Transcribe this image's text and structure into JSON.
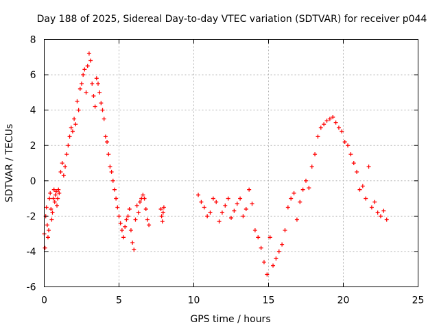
{
  "chart_data": {
    "type": "scatter",
    "title": "Day 188 of 2025, Sidereal Day-to-day VTEC variation (SDTVAR) for receiver p044",
    "xlabel": "GPS time / hours",
    "ylabel": "SDTVAR / TECUs",
    "xlim": [
      0,
      25
    ],
    "ylim": [
      -6,
      8
    ],
    "x_ticks": [
      "0",
      "5",
      "10",
      "15",
      "20",
      "25"
    ],
    "y_ticks": [
      "-6",
      "-4",
      "-2",
      "0",
      "2",
      "4",
      "6",
      "8"
    ],
    "grid": true,
    "marker": "+",
    "color": "#ff0000",
    "series": [
      {
        "name": "SDTVAR",
        "x": [
          0.0,
          0.05,
          0.1,
          0.15,
          0.2,
          0.25,
          0.3,
          0.35,
          0.4,
          0.45,
          0.5,
          0.55,
          0.6,
          0.65,
          0.7,
          0.75,
          0.8,
          0.85,
          0.9,
          0.95,
          1.0,
          1.1,
          1.2,
          1.3,
          1.4,
          1.5,
          1.6,
          1.7,
          1.8,
          1.9,
          2.0,
          2.1,
          2.2,
          2.3,
          2.4,
          2.5,
          2.6,
          2.7,
          2.8,
          2.9,
          3.0,
          3.1,
          3.2,
          3.3,
          3.4,
          3.5,
          3.6,
          3.7,
          3.8,
          3.9,
          4.0,
          4.1,
          4.2,
          4.3,
          4.4,
          4.5,
          4.6,
          4.7,
          4.8,
          4.9,
          5.0,
          5.1,
          5.2,
          5.3,
          5.4,
          5.5,
          5.6,
          5.7,
          5.8,
          5.9,
          6.0,
          6.1,
          6.2,
          6.3,
          6.4,
          6.5,
          6.6,
          6.7,
          6.8,
          6.9,
          7.0,
          7.8,
          7.85,
          7.9,
          7.95,
          8.0,
          10.3,
          10.5,
          10.7,
          10.9,
          11.1,
          11.3,
          11.5,
          11.7,
          11.9,
          12.1,
          12.3,
          12.5,
          12.7,
          12.9,
          13.1,
          13.3,
          13.5,
          13.7,
          13.9,
          14.1,
          14.3,
          14.5,
          14.7,
          14.9,
          15.1,
          15.3,
          15.5,
          15.7,
          15.9,
          16.1,
          16.3,
          16.5,
          16.7,
          16.9,
          17.1,
          17.3,
          17.5,
          17.7,
          17.9,
          18.1,
          18.3,
          18.5,
          18.7,
          18.9,
          19.1,
          19.3,
          19.5,
          19.7,
          19.9,
          20.1,
          20.3,
          20.5,
          20.7,
          20.9,
          21.1,
          21.3,
          21.5,
          21.7,
          21.9,
          22.1,
          22.3,
          22.5,
          22.7,
          22.9
        ],
        "y": [
          -3.0,
          -3.8,
          -2.0,
          -1.5,
          -2.5,
          -3.2,
          -2.8,
          -1.0,
          -0.7,
          -1.6,
          -2.2,
          -1.8,
          -1.0,
          -0.5,
          -1.2,
          -0.8,
          -0.6,
          -1.4,
          -1.0,
          -0.5,
          -0.7,
          0.5,
          1.0,
          0.3,
          0.8,
          1.5,
          2.0,
          2.5,
          3.0,
          2.8,
          3.5,
          3.2,
          4.5,
          4.0,
          5.2,
          5.5,
          6.0,
          6.3,
          5.0,
          6.5,
          7.2,
          6.8,
          5.5,
          4.8,
          4.2,
          5.8,
          5.5,
          5.0,
          4.4,
          4.0,
          3.5,
          2.5,
          2.2,
          1.5,
          0.8,
          0.5,
          0.0,
          -0.5,
          -1.0,
          -1.5,
          -2.0,
          -2.4,
          -2.8,
          -3.2,
          -2.6,
          -2.2,
          -2.0,
          -1.6,
          -2.8,
          -3.5,
          -3.9,
          -2.2,
          -1.4,
          -1.8,
          -1.2,
          -1.0,
          -0.8,
          -1.0,
          -1.6,
          -2.2,
          -2.5,
          -1.6,
          -2.0,
          -2.3,
          -1.8,
          -1.5,
          -0.8,
          -1.2,
          -1.5,
          -2.0,
          -1.8,
          -1.0,
          -1.2,
          -2.3,
          -1.8,
          -1.4,
          -1.0,
          -2.1,
          -1.7,
          -1.3,
          -1.0,
          -2.0,
          -1.6,
          -0.5,
          -1.3,
          -2.8,
          -3.2,
          -3.8,
          -4.6,
          -5.3,
          -3.2,
          -4.8,
          -4.4,
          -4.0,
          -3.6,
          -2.8,
          -1.5,
          -1.0,
          -0.7,
          -2.2,
          -1.2,
          -0.5,
          0.0,
          -0.4,
          0.8,
          1.5,
          2.5,
          3.0,
          3.2,
          3.4,
          3.5,
          3.6,
          3.3,
          3.0,
          2.8,
          2.2,
          2.0,
          1.5,
          1.0,
          0.5,
          -0.5,
          -0.3,
          -1.0,
          0.8,
          -1.5,
          -1.2,
          -1.8,
          -2.0,
          -1.7,
          -2.2
        ]
      }
    ]
  }
}
